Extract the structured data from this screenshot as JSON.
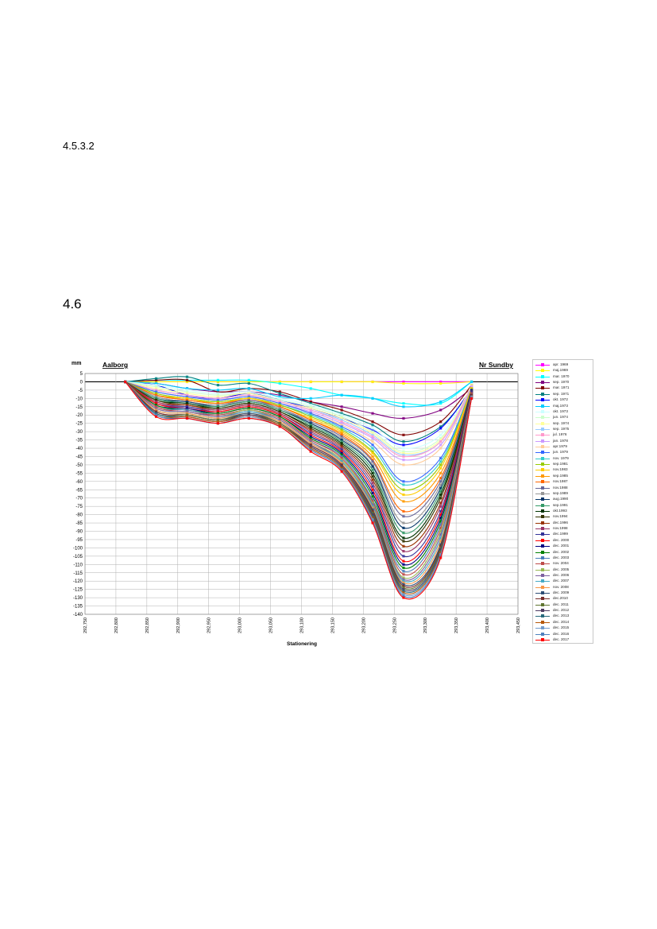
{
  "page": {
    "heading_1": "4.5.3.2",
    "heading_2": "4.6"
  },
  "chart_data": {
    "type": "line",
    "ylabel": "mm",
    "xlabel": "Stationering",
    "left_label": "Aalborg",
    "right_label": "Nr Sundby",
    "ylim": [
      -140,
      5
    ],
    "xlim": [
      292.75,
      293.45
    ],
    "yticks": [
      "5",
      "0",
      "-5",
      "-10",
      "-15",
      "-20",
      "-25",
      "-30",
      "-35",
      "-40",
      "-45",
      "-50",
      "-55",
      "-60",
      "-65",
      "-70",
      "-75",
      "-80",
      "-85",
      "-90",
      "-95",
      "-100",
      "-105",
      "-110",
      "-115",
      "-120",
      "-125",
      "-130",
      "-135",
      "-140"
    ],
    "xticks": [
      "292,750",
      "292,800",
      "292,850",
      "292,900",
      "292,950",
      "293,000",
      "293,050",
      "293,100",
      "293,150",
      "293,200",
      "293,250",
      "293,300",
      "293,350",
      "293,400",
      "293,450"
    ],
    "grid": true,
    "legend_position": "right",
    "x": [
      292.815,
      292.865,
      292.915,
      292.965,
      293.015,
      293.065,
      293.115,
      293.165,
      293.215,
      293.265,
      293.325,
      293.375
    ],
    "series": [
      {
        "name": "apr. 1969",
        "color": "#ff00ff",
        "values": [
          0,
          0,
          0,
          0,
          0,
          0,
          0,
          0,
          0,
          0,
          0,
          0
        ]
      },
      {
        "name": "maj.1969",
        "color": "#ffff00",
        "values": [
          0,
          0,
          0,
          0,
          0,
          0,
          0,
          0,
          0,
          -1,
          -1,
          0
        ]
      },
      {
        "name": "mar. 1970",
        "color": "#00ffff",
        "values": [
          0,
          1,
          1,
          1,
          1,
          -1,
          -4,
          -8,
          -10,
          -13,
          -13,
          0
        ]
      },
      {
        "name": "sep. 1970",
        "color": "#800080",
        "values": [
          0,
          -1,
          -4,
          -6,
          -6,
          -8,
          -12,
          -15,
          -19,
          -22,
          -17,
          -4
        ]
      },
      {
        "name": "mar. 1971",
        "color": "#800000",
        "values": [
          0,
          1,
          1,
          -6,
          -4,
          -6,
          -12,
          -17,
          -24,
          -32,
          -24,
          -2
        ]
      },
      {
        "name": "sep. 1971",
        "color": "#008080",
        "values": [
          0,
          2,
          3,
          -2,
          -1,
          -7,
          -13,
          -19,
          -26,
          -36,
          -27,
          -5
        ]
      },
      {
        "name": "okt. 1972",
        "color": "#0000ff",
        "values": [
          0,
          -2,
          -8,
          -10,
          -7,
          -11,
          -16,
          -22,
          -29,
          -38,
          -28,
          -4
        ]
      },
      {
        "name": "maj.1973",
        "color": "#00ccff",
        "values": [
          0,
          -1,
          -4,
          -5,
          -4,
          -9,
          -10,
          -8,
          -10,
          -15,
          -12,
          0
        ]
      },
      {
        "name": "okt. 1973",
        "color": "#ccffff",
        "values": [
          0,
          -2,
          -5,
          -7,
          -6,
          -10,
          -14,
          -20,
          -28,
          -40,
          -32,
          -3
        ]
      },
      {
        "name": "jun. 1974",
        "color": "#ccffcc",
        "values": [
          0,
          -3,
          -6,
          -8,
          -7,
          -11,
          -15,
          -21,
          -30,
          -42,
          -34,
          -3
        ]
      },
      {
        "name": "sep. 1974",
        "color": "#ffff99",
        "values": [
          0,
          -4,
          -7,
          -9,
          -7,
          -12,
          -16,
          -22,
          -31,
          -43,
          -35,
          -2
        ]
      },
      {
        "name": "sep. 1975",
        "color": "#99ccff",
        "values": [
          0,
          -5,
          -8,
          -10,
          -8,
          -12,
          -17,
          -23,
          -32,
          -44,
          -36,
          -3
        ]
      },
      {
        "name": "jul. 1976",
        "color": "#ff99cc",
        "values": [
          0,
          -5,
          -8,
          -10,
          -8,
          -12,
          -17,
          -24,
          -33,
          -45,
          -36,
          -3
        ]
      },
      {
        "name": "jan. 1978",
        "color": "#cc99ff",
        "values": [
          0,
          -6,
          -9,
          -11,
          -9,
          -13,
          -18,
          -25,
          -34,
          -47,
          -38,
          -3
        ]
      },
      {
        "name": "apr.1979",
        "color": "#ffcc99",
        "values": [
          0,
          -6,
          -9,
          -11,
          -9,
          -13,
          -19,
          -26,
          -36,
          -50,
          -40,
          -4
        ]
      },
      {
        "name": "jun. 1979",
        "color": "#3366ff",
        "values": [
          0,
          -6,
          -9,
          -11,
          -9,
          -13,
          -19,
          -27,
          -38,
          -60,
          -46,
          -4
        ]
      },
      {
        "name": "nov. 1979",
        "color": "#33cccc",
        "values": [
          0,
          -7,
          -10,
          -12,
          -10,
          -14,
          -20,
          -28,
          -40,
          -62,
          -48,
          -4
        ]
      },
      {
        "name": "sep.1981",
        "color": "#99cc00",
        "values": [
          0,
          -7,
          -10,
          -12,
          -10,
          -14,
          -21,
          -29,
          -42,
          -65,
          -50,
          -4
        ]
      },
      {
        "name": "nov.1983",
        "color": "#ffcc00",
        "values": [
          0,
          -8,
          -10,
          -13,
          -10,
          -15,
          -22,
          -30,
          -43,
          -68,
          -52,
          -4
        ]
      },
      {
        "name": "sep.1985",
        "color": "#ff9900",
        "values": [
          0,
          -8,
          -11,
          -13,
          -11,
          -15,
          -23,
          -31,
          -45,
          -72,
          -55,
          -5
        ]
      },
      {
        "name": "nov.1987",
        "color": "#ff6600",
        "values": [
          0,
          -8,
          -11,
          -13,
          -11,
          -15,
          -23,
          -32,
          -47,
          -78,
          -58,
          -5
        ]
      },
      {
        "name": "nov.1988",
        "color": "#666699",
        "values": [
          0,
          -9,
          -12,
          -14,
          -11,
          -16,
          -24,
          -33,
          -48,
          -81,
          -60,
          -5
        ]
      },
      {
        "name": "sep.1989",
        "color": "#969696",
        "values": [
          0,
          -9,
          -12,
          -14,
          -12,
          -16,
          -25,
          -34,
          -50,
          -85,
          -62,
          -5
        ]
      },
      {
        "name": "aug.1990",
        "color": "#003366",
        "values": [
          0,
          -10,
          -12,
          -15,
          -12,
          -17,
          -25,
          -35,
          -51,
          -88,
          -64,
          -5
        ]
      },
      {
        "name": "sep.1991",
        "color": "#339966",
        "values": [
          0,
          -10,
          -13,
          -15,
          -12,
          -17,
          -26,
          -36,
          -53,
          -91,
          -66,
          -6
        ]
      },
      {
        "name": "okt.1993",
        "color": "#003300",
        "values": [
          0,
          -11,
          -13,
          -16,
          -13,
          -18,
          -27,
          -37,
          -55,
          -94,
          -68,
          -6
        ]
      },
      {
        "name": "nov.1994",
        "color": "#333300",
        "values": [
          0,
          -11,
          -14,
          -16,
          -13,
          -18,
          -28,
          -38,
          -57,
          -96,
          -70,
          -6
        ]
      },
      {
        "name": "dec.1996",
        "color": "#993300",
        "values": [
          0,
          -12,
          -14,
          -17,
          -14,
          -19,
          -29,
          -39,
          -59,
          -99,
          -73,
          -6
        ]
      },
      {
        "name": "nov.1998",
        "color": "#993366",
        "values": [
          0,
          -12,
          -15,
          -17,
          -14,
          -19,
          -30,
          -40,
          -61,
          -102,
          -75,
          -6
        ]
      },
      {
        "name": "dec.1999",
        "color": "#333399",
        "values": [
          0,
          -13,
          -15,
          -18,
          -15,
          -20,
          -31,
          -41,
          -63,
          -105,
          -78,
          -6
        ]
      },
      {
        "name": "dec. 2000",
        "color": "#ff0000",
        "values": [
          0,
          -13,
          -16,
          -18,
          -15,
          -20,
          -32,
          -42,
          -65,
          -108,
          -80,
          -7
        ]
      },
      {
        "name": "dec. 2001",
        "color": "#000080",
        "values": [
          0,
          -14,
          -16,
          -19,
          -16,
          -21,
          -33,
          -43,
          -67,
          -110,
          -82,
          -7
        ]
      },
      {
        "name": "dec. 2002",
        "color": "#008000",
        "values": [
          0,
          -14,
          -17,
          -19,
          -16,
          -21,
          -34,
          -44,
          -69,
          -112,
          -84,
          -7
        ]
      },
      {
        "name": "dec. 2003",
        "color": "#4a7ebb",
        "values": [
          0,
          -15,
          -17,
          -20,
          -17,
          -22,
          -35,
          -45,
          -71,
          -114,
          -86,
          -7
        ]
      },
      {
        "name": "nov. 2004",
        "color": "#be4b48",
        "values": [
          0,
          -15,
          -18,
          -20,
          -17,
          -22,
          -35,
          -46,
          -72,
          -116,
          -88,
          -7
        ]
      },
      {
        "name": "dec. 2005",
        "color": "#98b954",
        "values": [
          0,
          -16,
          -18,
          -21,
          -17,
          -23,
          -36,
          -47,
          -73,
          -118,
          -90,
          -8
        ]
      },
      {
        "name": "dec. 2006",
        "color": "#7d60a0",
        "values": [
          0,
          -16,
          -18,
          -21,
          -18,
          -23,
          -36,
          -48,
          -74,
          -119,
          -92,
          -8
        ]
      },
      {
        "name": "dec. 2007",
        "color": "#46aac5",
        "values": [
          0,
          -17,
          -19,
          -22,
          -18,
          -24,
          -37,
          -48,
          -75,
          -120,
          -94,
          -8
        ]
      },
      {
        "name": "nov. 2008",
        "color": "#f79646",
        "values": [
          0,
          -17,
          -19,
          -22,
          -19,
          -24,
          -37,
          -49,
          -76,
          -121,
          -96,
          -8
        ]
      },
      {
        "name": "dec. 2009",
        "color": "#2c4d75",
        "values": [
          0,
          -18,
          -20,
          -23,
          -19,
          -25,
          -38,
          -50,
          -77,
          -122,
          -98,
          -8
        ]
      },
      {
        "name": "dec.2010",
        "color": "#772c2a",
        "values": [
          0,
          -18,
          -20,
          -23,
          -20,
          -25,
          -38,
          -50,
          -78,
          -123,
          -99,
          -8
        ]
      },
      {
        "name": "dec. 2011",
        "color": "#5f7530",
        "values": [
          0,
          -19,
          -20,
          -23,
          -20,
          -25,
          -39,
          -51,
          -79,
          -124,
          -100,
          -9
        ]
      },
      {
        "name": "dec. 2012",
        "color": "#4d3b62",
        "values": [
          0,
          -19,
          -21,
          -24,
          -20,
          -26,
          -39,
          -51,
          -80,
          -125,
          -101,
          -9
        ]
      },
      {
        "name": "dec. 2013",
        "color": "#276a7c",
        "values": [
          0,
          -19,
          -21,
          -24,
          -21,
          -26,
          -40,
          -52,
          -81,
          -126,
          -102,
          -9
        ]
      },
      {
        "name": "dec. 2014",
        "color": "#b65708",
        "values": [
          0,
          -20,
          -21,
          -24,
          -21,
          -26,
          -40,
          -52,
          -82,
          -127,
          -103,
          -9
        ]
      },
      {
        "name": "dec. 2015",
        "color": "#729aca",
        "values": [
          0,
          -20,
          -22,
          -25,
          -21,
          -27,
          -41,
          -53,
          -83,
          -128,
          -104,
          -9
        ]
      },
      {
        "name": "dec. 2016",
        "color": "#4f81bd",
        "values": [
          0,
          -20,
          -22,
          -25,
          -22,
          -27,
          -41,
          -53,
          -84,
          -129,
          -105,
          -10
        ]
      },
      {
        "name": "dec. 2017",
        "color": "#ff0000",
        "values": [
          0,
          -21,
          -22,
          -25,
          -22,
          -27,
          -42,
          -54,
          -85,
          -130,
          -106,
          -10
        ]
      }
    ]
  }
}
